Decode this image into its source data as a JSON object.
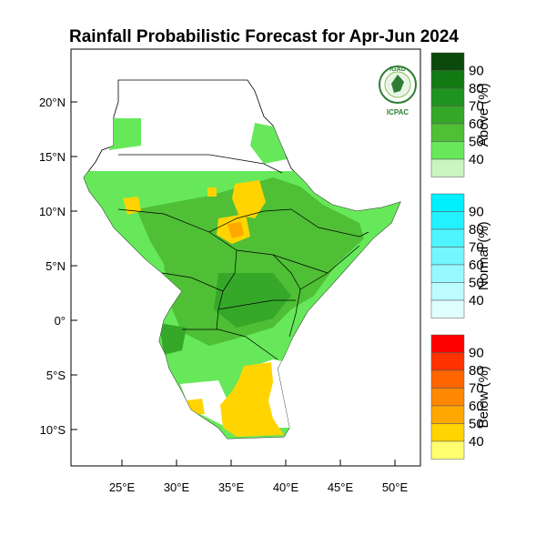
{
  "title": "Rainfall Probabilistic Forecast for Apr-Jun 2024",
  "logo": {
    "top_text": "IGAD",
    "bottom_text": "ICPAC"
  },
  "axes": {
    "lon_ticks": [
      "25°E",
      "30°E",
      "35°E",
      "40°E",
      "45°E",
      "50°E"
    ],
    "lat_ticks": [
      "20°N",
      "15°N",
      "10°N",
      "5°N",
      "0°",
      "5°S",
      "10°S"
    ]
  },
  "colorbars": [
    {
      "name": "Above (%)",
      "labels": [
        "90",
        "80",
        "70",
        "60",
        "50",
        "40"
      ],
      "colors": [
        "#0b4a0b",
        "#137b13",
        "#1f931f",
        "#35a82a",
        "#4fbf35",
        "#66e85a",
        "#c8f5c0"
      ]
    },
    {
      "name": "Normal (%)",
      "labels": [
        "90",
        "80",
        "70",
        "60",
        "50",
        "40"
      ],
      "colors": [
        "#00f0ff",
        "#22f2ff",
        "#4ef4ff",
        "#72f6ff",
        "#98f8ff",
        "#bcfbff",
        "#e0fdff"
      ]
    },
    {
      "name": "Below (%)",
      "labels": [
        "90",
        "80",
        "70",
        "60",
        "50",
        "40"
      ],
      "colors": [
        "#ff0000",
        "#ff3300",
        "#ff6600",
        "#ff8800",
        "#ffa800",
        "#ffd400",
        "#ffff70"
      ]
    }
  ],
  "map_colors": {
    "region_light": "#66e85a",
    "region_mid": "#4fbf35",
    "region_dark": "#35a82a",
    "below_yellow": "#ffd400",
    "below_orange": "#ffa800",
    "border": "#000000"
  }
}
